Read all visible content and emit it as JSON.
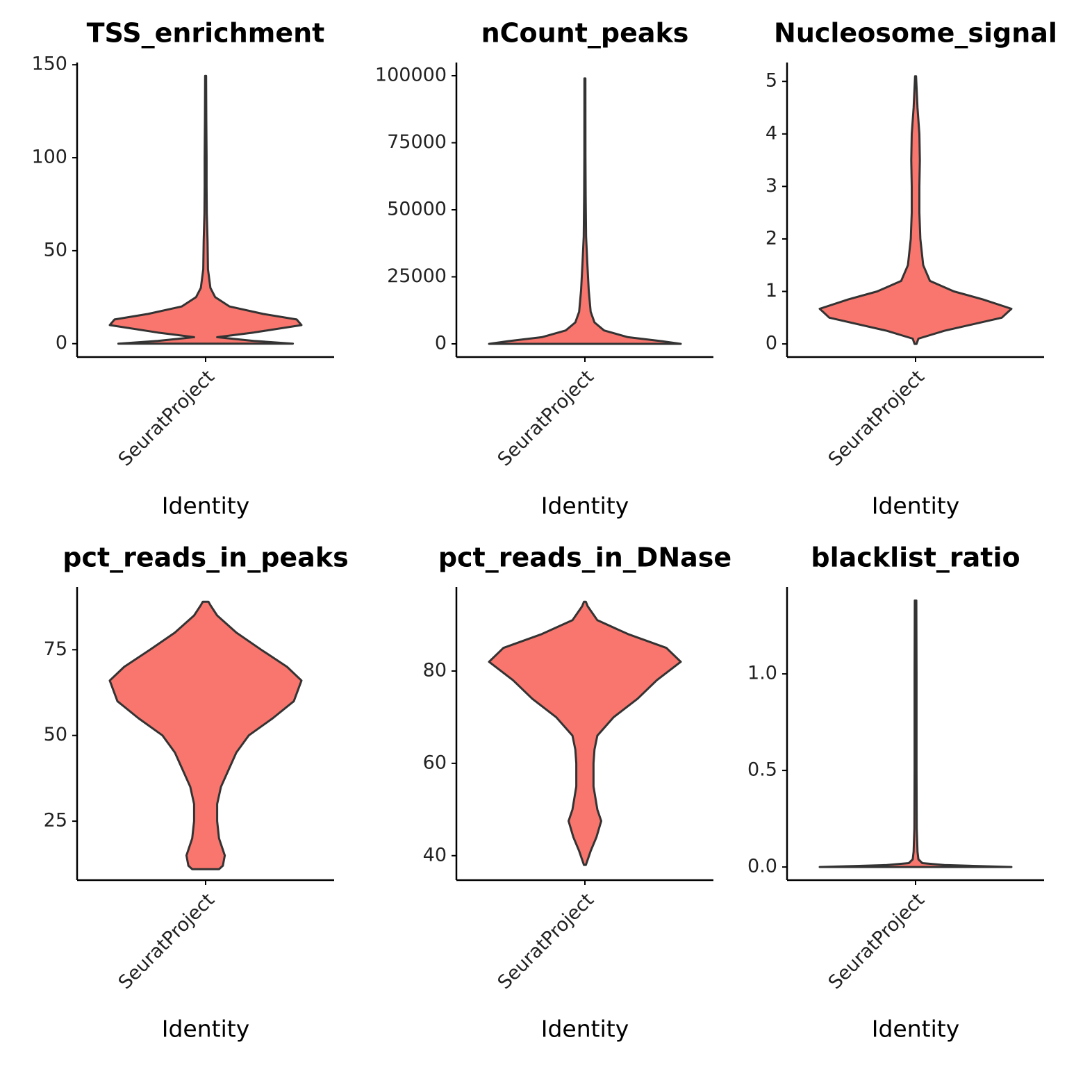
{
  "chart_data": [
    {
      "type": "violin",
      "title": "TSS_enrichment",
      "categories": [
        "SeuratProject"
      ],
      "xlabel": "Identity",
      "color": "#F8766D",
      "ylim": [
        -7.2,
        151.2
      ],
      "yticks": [
        0,
        50,
        100,
        150
      ],
      "violin": {
        "y": [
          0,
          1.5,
          3.5,
          6,
          10,
          13,
          16,
          20,
          25,
          30,
          40,
          55,
          70,
          85,
          100,
          120,
          144
        ],
        "density": [
          0.91,
          0.5,
          0.12,
          0.5,
          1.0,
          0.95,
          0.6,
          0.25,
          0.1,
          0.05,
          0.025,
          0.02,
          0.012,
          0.01,
          0.01,
          0.007,
          0.005
        ]
      }
    },
    {
      "type": "violin",
      "title": "nCount_peaks",
      "categories": [
        "SeuratProject"
      ],
      "xlabel": "Identity",
      "color": "#F8766D",
      "ylim": [
        -4922,
        104922
      ],
      "yticks": [
        0,
        25000,
        50000,
        75000,
        100000
      ],
      "violin": {
        "y": [
          0,
          1000,
          2500,
          5000,
          8000,
          12000,
          20000,
          30000,
          40000,
          55000,
          70000,
          99000
        ],
        "density": [
          1.0,
          0.8,
          0.45,
          0.2,
          0.1,
          0.06,
          0.04,
          0.025,
          0.012,
          0.008,
          0.006,
          0.005
        ]
      }
    },
    {
      "type": "violin",
      "title": "Nucleosome_signal",
      "categories": [
        "SeuratProject"
      ],
      "xlabel": "Identity",
      "color": "#F8766D",
      "ylim": [
        -0.25,
        5.36
      ],
      "yticks": [
        0,
        1,
        2,
        3,
        4,
        5
      ],
      "violin": {
        "y": [
          0,
          0.1,
          0.25,
          0.5,
          0.67,
          0.85,
          1.0,
          1.2,
          1.5,
          2,
          2.5,
          3,
          3.5,
          4,
          4.5,
          5.1
        ],
        "density": [
          0.01,
          0.03,
          0.3,
          0.9,
          1.0,
          0.7,
          0.4,
          0.15,
          0.08,
          0.05,
          0.04,
          0.04,
          0.045,
          0.04,
          0.02,
          0.005
        ]
      }
    },
    {
      "type": "violin",
      "title": "pct_reads_in_peaks",
      "categories": [
        "SeuratProject"
      ],
      "xlabel": "Identity",
      "color": "#F8766D",
      "ylim": [
        7.8,
        93.3
      ],
      "yticks": [
        25,
        50,
        75
      ],
      "violin": {
        "y": [
          11,
          12,
          15,
          20,
          25,
          30,
          35,
          40,
          45,
          50,
          55,
          60,
          66,
          70,
          75,
          80,
          85,
          88,
          89
        ],
        "density": [
          0.14,
          0.18,
          0.2,
          0.14,
          0.12,
          0.12,
          0.16,
          0.24,
          0.32,
          0.45,
          0.7,
          0.92,
          1.0,
          0.85,
          0.58,
          0.32,
          0.12,
          0.05,
          0.03
        ]
      }
    },
    {
      "type": "violin",
      "title": "pct_reads_in_DNase",
      "categories": [
        "SeuratProject"
      ],
      "xlabel": "Identity",
      "color": "#F8766D",
      "ylim": [
        34.7,
        98.2
      ],
      "yticks": [
        40,
        60,
        80
      ],
      "violin": {
        "y": [
          38,
          41,
          44,
          47.5,
          50,
          55,
          60,
          63,
          66,
          70,
          74,
          78,
          82,
          85,
          88,
          91,
          94,
          95
        ],
        "density": [
          0.01,
          0.06,
          0.12,
          0.17,
          0.13,
          0.09,
          0.09,
          0.1,
          0.13,
          0.3,
          0.55,
          0.75,
          1.0,
          0.85,
          0.45,
          0.13,
          0.03,
          0.01
        ]
      }
    },
    {
      "type": "violin",
      "title": "blacklist_ratio",
      "categories": [
        "SeuratProject"
      ],
      "xlabel": "Identity",
      "color": "#F8766D",
      "ylim": [
        -0.068,
        1.45
      ],
      "yticks": [
        {
          "value": 0,
          "label": "0.0"
        },
        0.5,
        {
          "value": 1,
          "label": "1.0"
        }
      ],
      "violin": {
        "y": [
          0,
          0.01,
          0.02,
          0.04,
          0.08,
          0.2,
          0.5,
          1.0,
          1.38
        ],
        "density": [
          1.0,
          0.3,
          0.07,
          0.03,
          0.02,
          0.012,
          0.01,
          0.01,
          0.008
        ]
      }
    }
  ]
}
